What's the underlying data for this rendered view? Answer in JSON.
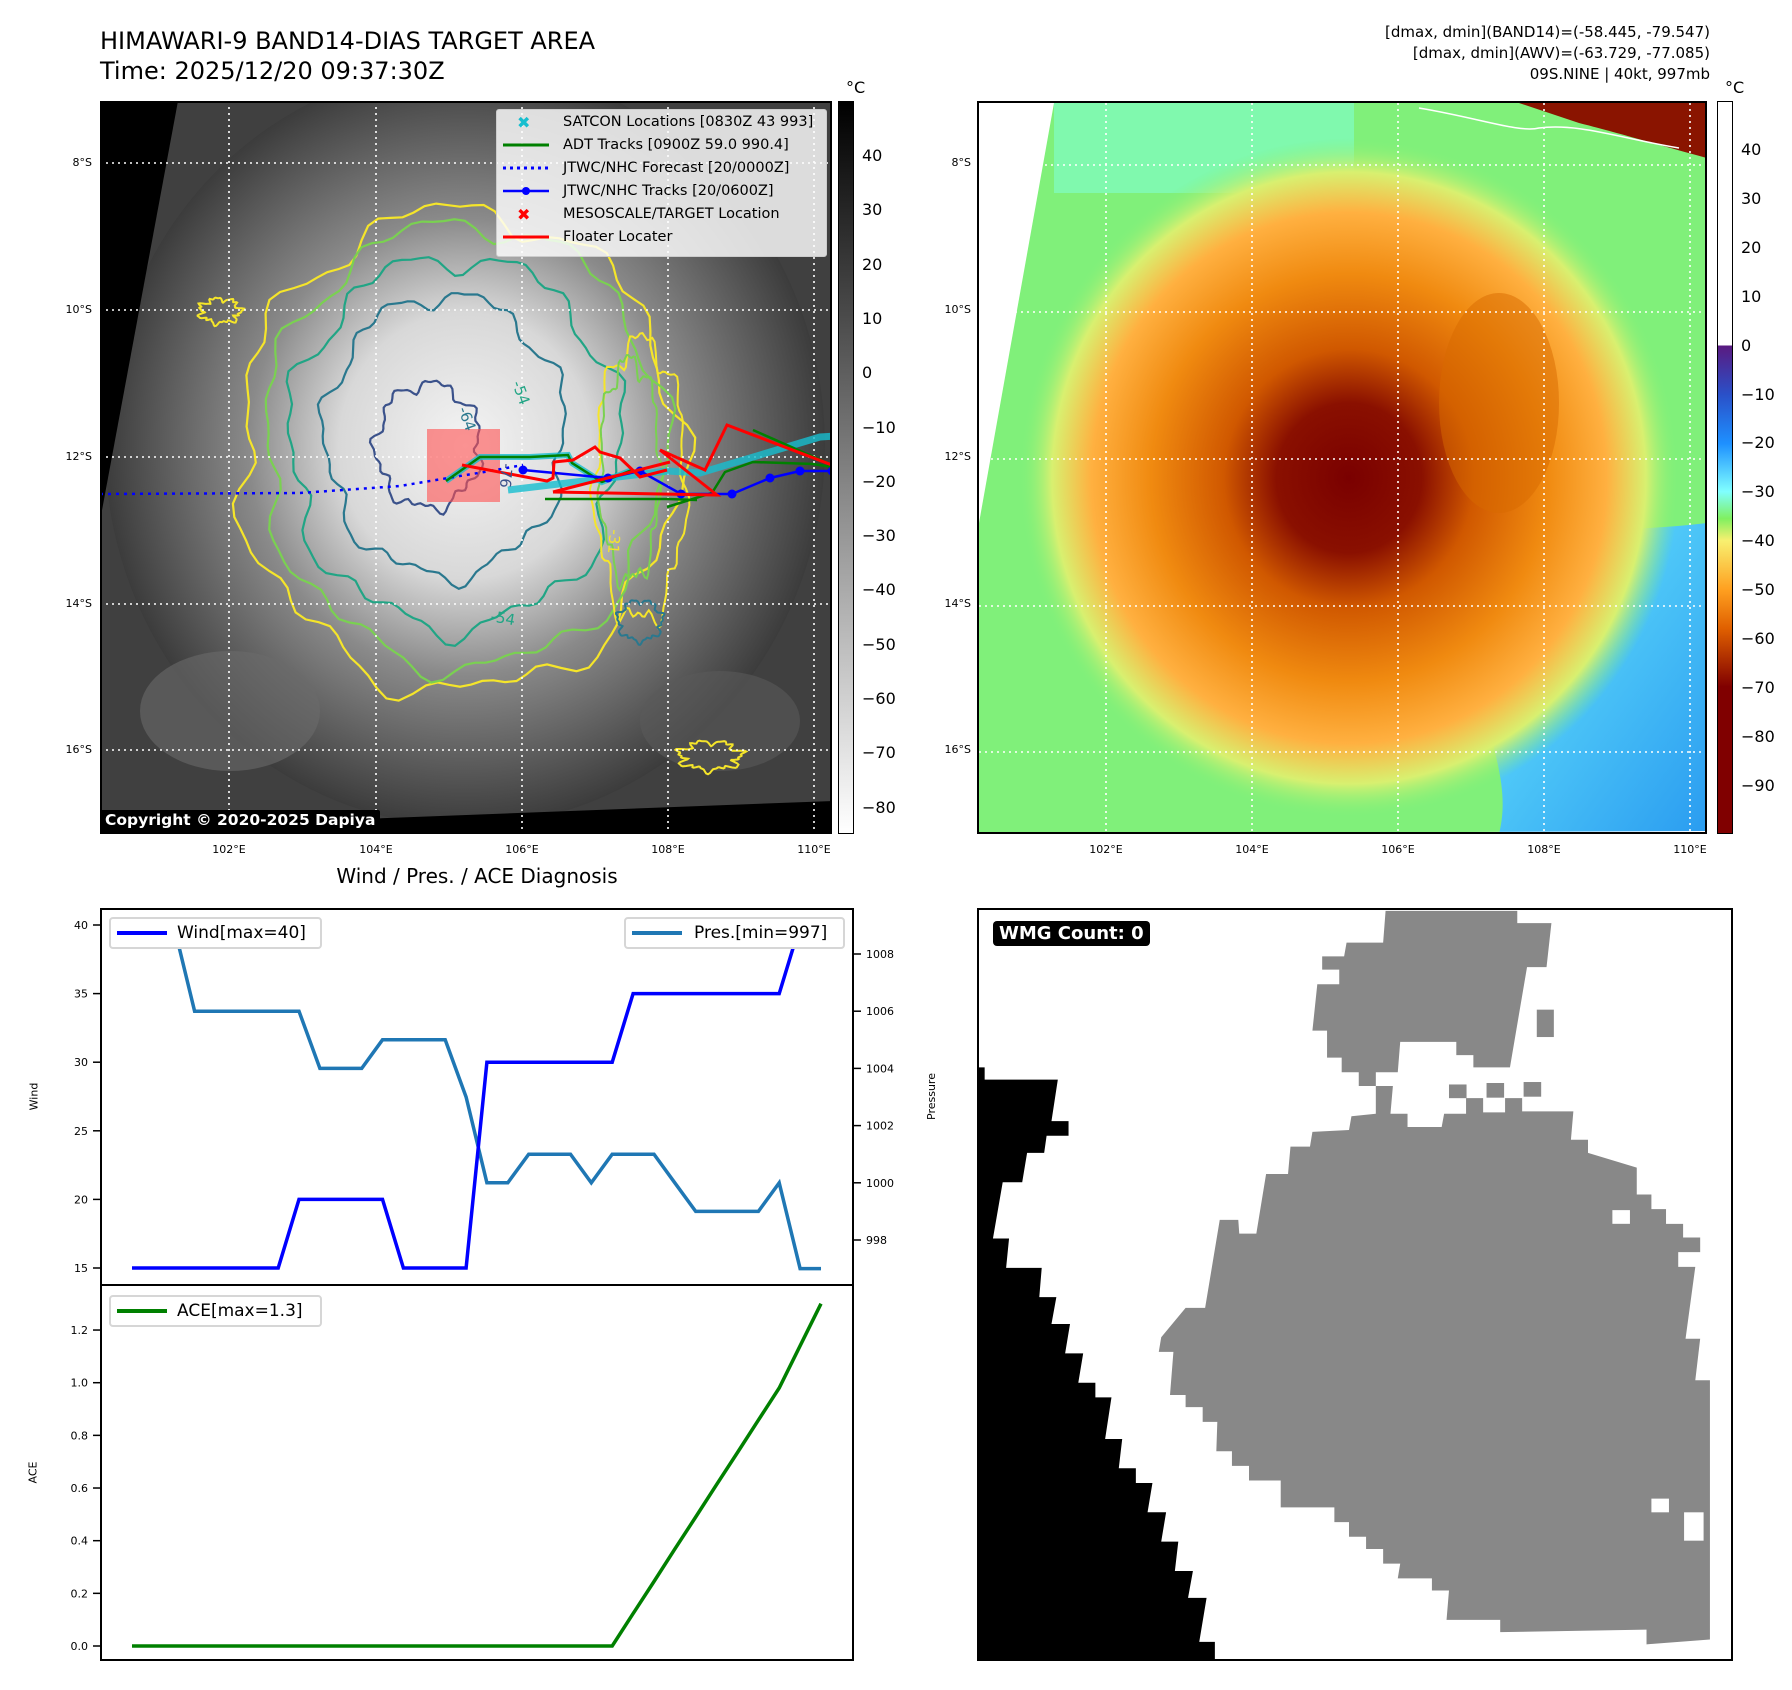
{
  "header": {
    "title": "HIMAWARI-9 BAND14-DIAS TARGET AREA",
    "time": "Time: 2025/12/20 09:37:30Z",
    "stats": [
      "[dmax, dmin](BAND14)=(-58.445, -79.547)",
      "[dmax, dmin](AWV)=(-63.729, -77.085)",
      "09S.NINE | 40kt, 997mb"
    ]
  },
  "map": {
    "lat_labels": [
      "8°S",
      "10°S",
      "12°S",
      "14°S",
      "16°S"
    ],
    "lon_labels": [
      "102°E",
      "104°E",
      "106°E",
      "108°E",
      "110°E"
    ],
    "contour_labels": [
      "-64",
      "-54",
      "-76",
      "-54",
      "-31"
    ],
    "copyright": "Copyright © 2020-2025 Dapiya",
    "legend": [
      {
        "label": "SATCON Locations [0830Z 43 993]",
        "color": "#17becf"
      },
      {
        "label": "ADT Tracks [0900Z 59.0 990.4]",
        "color": "#008000"
      },
      {
        "label": "JTWC/NHC Forecast [20/0000Z]",
        "color": "#0000ff"
      },
      {
        "label": "JTWC/NHC Tracks [20/0600Z]",
        "color": "#0000ff"
      },
      {
        "label": "MESOSCALE/TARGET Location",
        "color": "#ff0000"
      },
      {
        "label": "Floater Locater",
        "color": "#ff0000"
      }
    ],
    "colorbar_unit": "°C",
    "colorbar_ticks": [
      "40",
      "30",
      "20",
      "10",
      "0",
      "−10",
      "−20",
      "−30",
      "−40",
      "−50",
      "−60",
      "−70",
      "−80"
    ]
  },
  "map2": {
    "lat_labels": [
      "8°S",
      "10°S",
      "12°S",
      "14°S",
      "16°S"
    ],
    "lon_labels": [
      "102°E",
      "104°E",
      "106°E",
      "108°E",
      "110°E"
    ],
    "colorbar_unit": "°C",
    "colorbar_ticks": [
      "40",
      "30",
      "20",
      "10",
      "0",
      "−10",
      "−20",
      "−30",
      "−40",
      "−50",
      "−60",
      "−70",
      "−80",
      "−90"
    ]
  },
  "diagnosis": {
    "title": "Wind / Pres. / ACE Diagnosis"
  },
  "wmg": {
    "label": "WMG Count: 0"
  },
  "chart_data": [
    {
      "type": "line",
      "title": "Wind / Pres. / ACE Diagnosis",
      "ylabel": "Wind",
      "y2label": "Pressure",
      "ylim": [
        14.3,
        41.2
      ],
      "y2lim": [
        996.6,
        1009.6
      ],
      "yticks": [
        "15",
        "20",
        "25",
        "30",
        "35",
        "40"
      ],
      "y2ticks": [
        "998",
        "1000",
        "1002",
        "1004",
        "1006",
        "1008"
      ],
      "legend_left": "Wind[max=40]",
      "legend_right": "Pres.[min=997]",
      "series": [
        {
          "name": "Wind[max=40]",
          "color": "#0000ff",
          "axis": "left",
          "values": [
            15,
            15,
            15,
            15,
            15,
            15,
            15,
            15,
            20,
            20,
            20,
            20,
            20,
            15,
            15,
            15,
            15,
            30,
            30,
            30,
            30,
            30,
            30,
            30,
            35,
            35,
            35,
            35,
            35,
            35,
            35,
            35,
            40,
            40
          ]
        },
        {
          "name": "Pres.[min=997]",
          "color": "#1f77b4",
          "axis": "right",
          "values": [
            1009,
            1009,
            1009,
            1006,
            1006,
            1006,
            1006,
            1006,
            1006,
            1004,
            1004,
            1004,
            1005,
            1005,
            1005,
            1005,
            1003,
            1000,
            1000,
            1001,
            1001,
            1001,
            1000,
            1001,
            1001,
            1001,
            1000,
            999,
            999,
            999,
            999,
            1000,
            997,
            997
          ]
        }
      ]
    },
    {
      "type": "line",
      "ylabel": "ACE",
      "ylim": [
        -0.06,
        1.37
      ],
      "yticks": [
        "0.0",
        "0.2",
        "0.4",
        "0.6",
        "0.8",
        "1.0",
        "1.2"
      ],
      "legend": "ACE[max=1.3]",
      "series": [
        {
          "name": "ACE[max=1.3]",
          "color": "#008000",
          "values": [
            0,
            0,
            0,
            0,
            0,
            0,
            0,
            0,
            0,
            0,
            0,
            0,
            0,
            0,
            0,
            0,
            0,
            0,
            0,
            0,
            0,
            0,
            0,
            0,
            0.123,
            0.245,
            0.368,
            0.49,
            0.613,
            0.735,
            0.858,
            0.98,
            1.14,
            1.3
          ]
        }
      ]
    }
  ]
}
